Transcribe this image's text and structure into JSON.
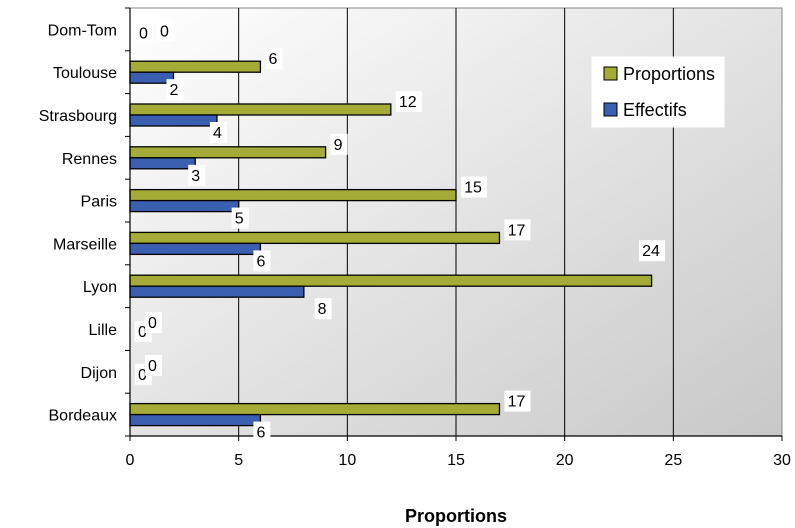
{
  "chart_data": {
    "type": "bar",
    "orientation": "horizontal",
    "categories": [
      "Bordeaux",
      "Dijon",
      "Lille",
      "Lyon",
      "Marseille",
      "Paris",
      "Rennes",
      "Strasbourg",
      "Toulouse",
      "Dom-Tom"
    ],
    "series": [
      {
        "name": "Proportions",
        "color": "#a5ab37",
        "values": [
          17,
          0,
          0,
          24,
          17,
          15,
          9,
          12,
          6,
          0
        ]
      },
      {
        "name": "Effectifs",
        "color": "#3b5fb0",
        "values": [
          6,
          0,
          0,
          8,
          6,
          5,
          3,
          4,
          2,
          0
        ]
      }
    ],
    "xlabel": "Proportions",
    "xlim": [
      0,
      30
    ],
    "xticks": [
      "0",
      "5",
      "10",
      "15",
      "20",
      "25",
      "30"
    ],
    "grid": true,
    "legend_position": "top-right",
    "background": "gradient-white-to-gray"
  }
}
